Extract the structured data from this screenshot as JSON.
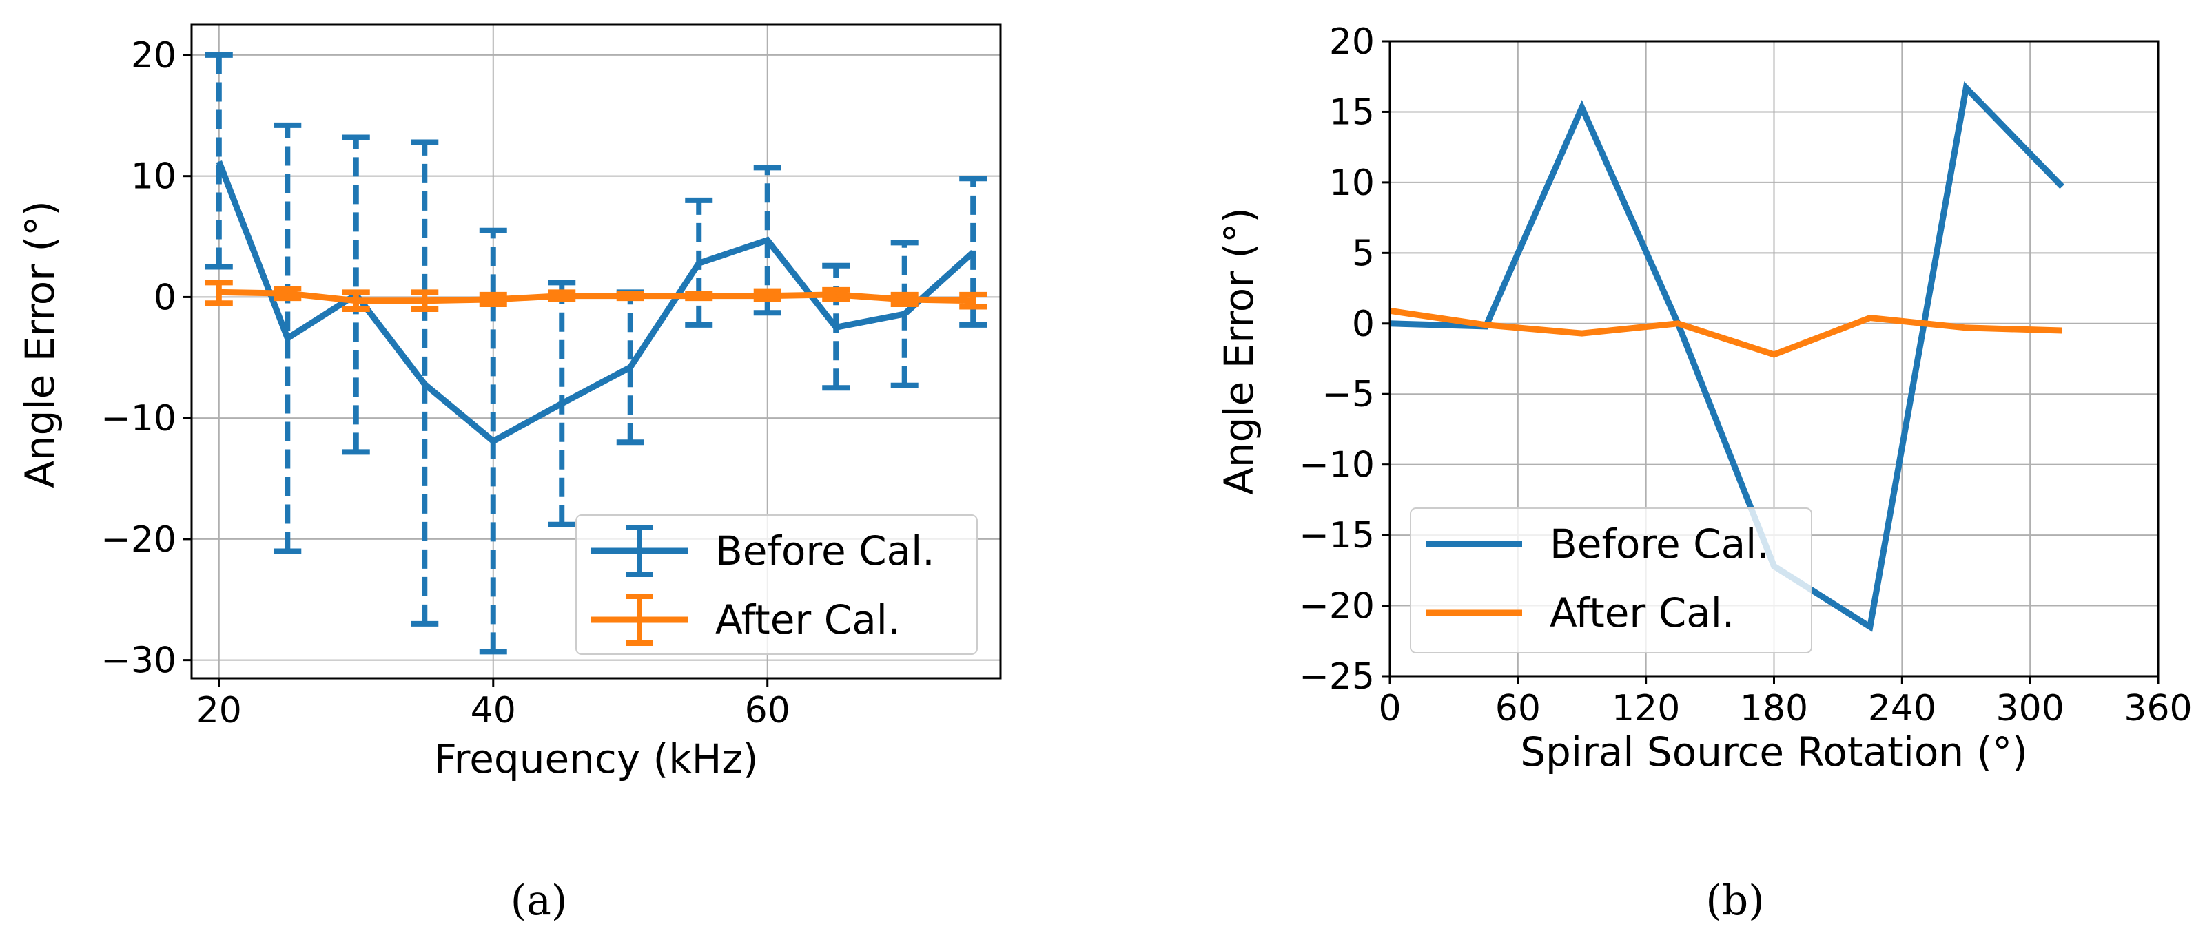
{
  "chart_data": [
    {
      "type": "line",
      "panel_label": "(a)",
      "xlabel": "Frequency (kHz)",
      "ylabel": "Angle Error (°)",
      "xlim": [
        18,
        77
      ],
      "ylim": [
        -31.5,
        22.5
      ],
      "xticks": [
        20,
        40,
        60
      ],
      "xtick_labels": [
        "20",
        "40",
        "60"
      ],
      "yticks": [
        -30,
        -20,
        -10,
        0,
        10,
        20
      ],
      "ytick_labels": [
        "−30",
        "−20",
        "−10",
        "0",
        "10",
        "20"
      ],
      "grid": true,
      "legend_position": "lower-right",
      "x": [
        20,
        25,
        30,
        35,
        40,
        45,
        50,
        55,
        60,
        65,
        70,
        75
      ],
      "series": [
        {
          "name": "Before Cal.",
          "color": "#1f77b4",
          "errorbars": true,
          "values": [
            11.2,
            -3.4,
            0.2,
            -7.2,
            -11.9,
            -8.8,
            -5.8,
            2.8,
            4.7,
            -2.5,
            -1.4,
            3.7
          ],
          "lower": [
            2.5,
            -21.0,
            -12.8,
            -27.0,
            -29.3,
            -18.8,
            -12.0,
            -2.3,
            -1.3,
            -7.5,
            -7.3,
            -2.3
          ],
          "upper": [
            20.0,
            14.2,
            13.2,
            12.8,
            5.5,
            1.2,
            0.4,
            8.0,
            10.7,
            2.6,
            4.5,
            9.8
          ]
        },
        {
          "name": "After Cal.",
          "color": "#ff7f0e",
          "errorbars": true,
          "values": [
            0.4,
            0.3,
            -0.3,
            -0.3,
            -0.2,
            0.1,
            0.1,
            0.1,
            0.1,
            0.2,
            -0.2,
            -0.3
          ],
          "lower": [
            -0.5,
            -0.1,
            -1.0,
            -1.0,
            -0.6,
            -0.2,
            -0.1,
            -0.1,
            -0.2,
            -0.2,
            -0.6,
            -0.8
          ],
          "upper": [
            1.2,
            0.7,
            0.4,
            0.4,
            0.2,
            0.4,
            0.3,
            0.3,
            0.5,
            0.6,
            0.2,
            0.2
          ]
        }
      ]
    },
    {
      "type": "line",
      "panel_label": "(b)",
      "xlabel": "Spiral Source Rotation (°)",
      "ylabel": "Angle Error (°)",
      "xlim": [
        0,
        360
      ],
      "ylim": [
        -25,
        20
      ],
      "xticks": [
        0,
        60,
        120,
        180,
        240,
        300,
        360
      ],
      "xtick_labels": [
        "0",
        "60",
        "120",
        "180",
        "240",
        "300",
        "360"
      ],
      "yticks": [
        -25,
        -20,
        -15,
        -10,
        -5,
        0,
        5,
        10,
        15,
        20
      ],
      "ytick_labels": [
        "−25",
        "−20",
        "−15",
        "−10",
        "−5",
        "0",
        "5",
        "10",
        "15",
        "20"
      ],
      "grid": true,
      "legend_position": "lower-left",
      "x": [
        0,
        45,
        90,
        135,
        180,
        225,
        270,
        315
      ],
      "series": [
        {
          "name": "Before Cal.",
          "color": "#1f77b4",
          "values": [
            0.0,
            -0.2,
            15.3,
            0.0,
            -17.2,
            -21.5,
            16.7,
            9.7
          ]
        },
        {
          "name": "After Cal.",
          "color": "#ff7f0e",
          "values": [
            0.9,
            -0.1,
            -0.7,
            0.0,
            -2.2,
            0.4,
            -0.3,
            -0.5
          ]
        }
      ]
    }
  ]
}
